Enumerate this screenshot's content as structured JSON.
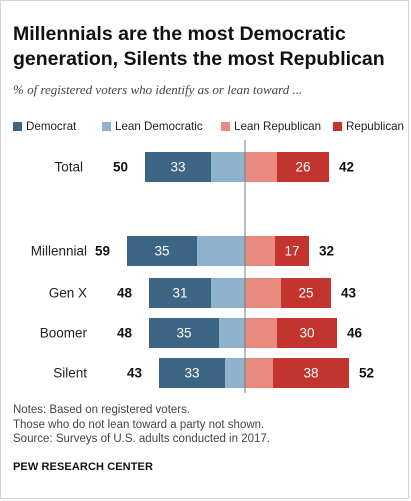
{
  "title": "Millennials are the most Democratic generation, Silents the most Republican",
  "subtitle": "% of registered voters who identify as or lean toward ...",
  "colors": {
    "democrat": "#3d6584",
    "lean_democratic": "#8fb1cc",
    "lean_republican": "#e98a80",
    "republican": "#c4342f"
  },
  "legend": [
    {
      "label": "Democrat",
      "color": "#3d6584"
    },
    {
      "label": "Lean Democratic",
      "color": "#8fb1cc"
    },
    {
      "label": "Lean Republican",
      "color": "#e98a80"
    },
    {
      "label": "Republican",
      "color": "#c4342f"
    }
  ],
  "chart_data": {
    "type": "bar",
    "orientation": "horizontal-diverging",
    "unit": "%",
    "categories": [
      "Total",
      "Millennial",
      "Gen X",
      "Boomer",
      "Silent"
    ],
    "series": [
      {
        "name": "Democrat",
        "values": [
          33,
          35,
          31,
          35,
          33
        ]
      },
      {
        "name": "Lean Democratic",
        "values": [
          17,
          24,
          17,
          13,
          10
        ]
      },
      {
        "name": "Lean Republican",
        "values": [
          16,
          15,
          18,
          16,
          14
        ]
      },
      {
        "name": "Republican",
        "values": [
          26,
          17,
          25,
          30,
          38
        ]
      }
    ],
    "democratic_totals": [
      50,
      59,
      48,
      48,
      43
    ],
    "republican_totals": [
      42,
      32,
      43,
      46,
      52
    ],
    "xlabel": "",
    "ylabel": "",
    "legend_position": "top",
    "grid": false
  },
  "notes": [
    "Notes: Based on registered voters.",
    "Those who do not lean toward a party not shown.",
    "Source: Surveys of U.S. adults conducted in 2017."
  ],
  "source_org": "PEW RESEARCH CENTER"
}
